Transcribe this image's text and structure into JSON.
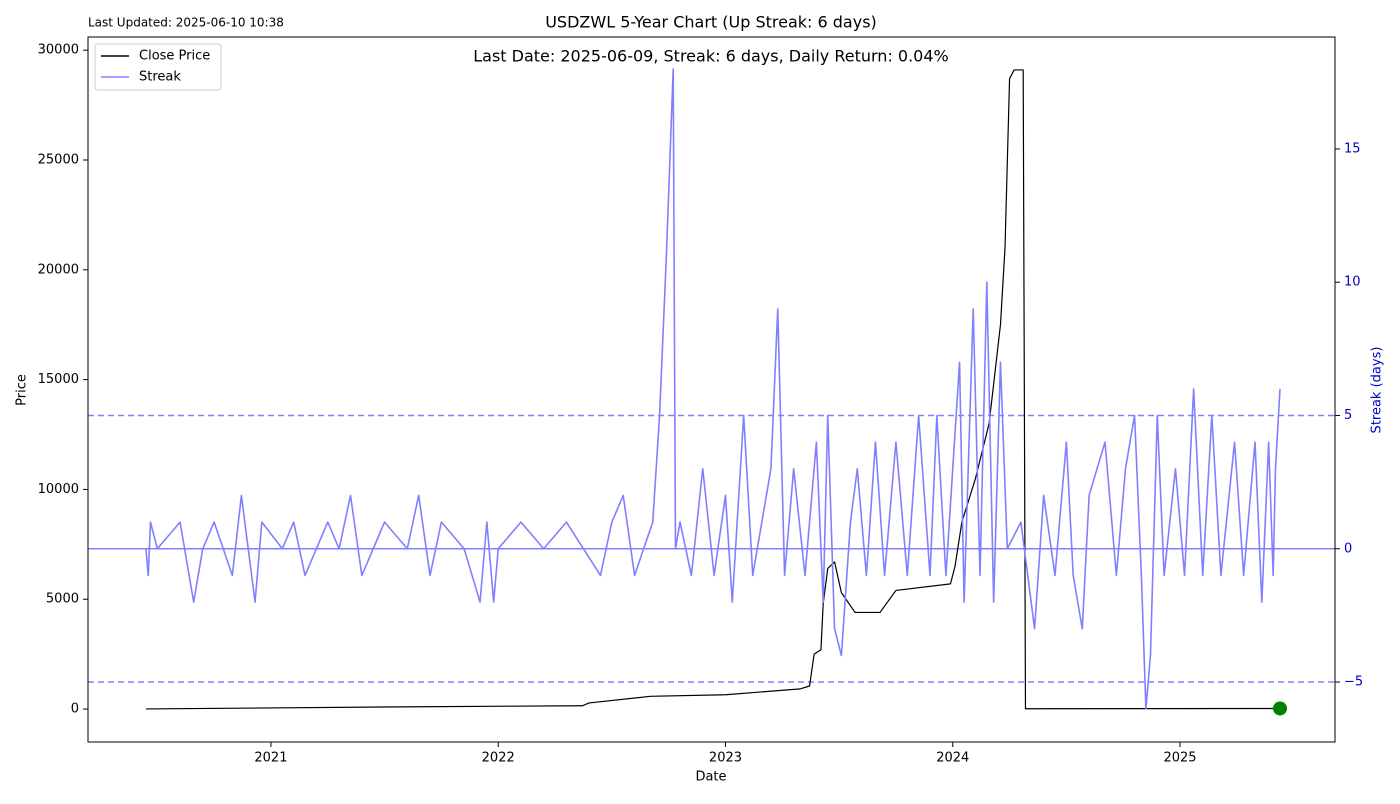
{
  "chart_data": {
    "type": "line",
    "title": "USDZWL 5-Year Chart (Up Streak: 6 days)",
    "subtitle": "Last Date: 2025-06-09, Streak: 6 days, Daily Return: 0.04%",
    "updated": "Last Updated: 2025-06-10 10:38",
    "xlabel": "Date",
    "ylabel": "Price",
    "y2label": "Streak (days)",
    "xlim": [
      2020.195,
      2025.682
    ],
    "xticks": [
      2021,
      2022,
      2023,
      2024,
      2025
    ],
    "ylim": [
      -1500,
      30600
    ],
    "yticks": [
      0,
      5000,
      10000,
      15000,
      20000,
      25000,
      30000
    ],
    "y2lim": [
      -7.25,
      19.2
    ],
    "y2ticks": [
      {
        "value": -5,
        "label": "−5"
      },
      0,
      5,
      10,
      15
    ],
    "y2_color": "#0000cc",
    "reference_lines": [
      {
        "value": 5,
        "style": "dashed"
      },
      {
        "value": -5,
        "style": "dashed"
      },
      {
        "value": 0,
        "style": "solid"
      }
    ],
    "legend": "upper left",
    "last_marker_color": "#008000",
    "series": [
      {
        "name": "Close Price",
        "color": "#000000",
        "x": [
          2020.45,
          2021.57,
          2022.37,
          2022.4,
          2022.67,
          2023.0,
          2023.33,
          2023.37,
          2023.39,
          2023.42,
          2023.43,
          2023.45,
          2023.48,
          2023.51,
          2023.57,
          2023.68,
          2023.75,
          2023.99,
          2024.01,
          2024.04,
          2024.1,
          2024.16,
          2024.21,
          2024.23,
          2024.25,
          2024.27,
          2024.31,
          2024.32,
          2025.44
        ],
        "values": [
          5,
          100,
          150,
          280,
          580,
          650,
          920,
          1050,
          2500,
          2700,
          4800,
          6400,
          6700,
          5300,
          4400,
          4400,
          5400,
          5700,
          6500,
          8500,
          10500,
          13000,
          17500,
          21000,
          28700,
          29100,
          29100,
          14,
          27
        ]
      },
      {
        "name": "Streak",
        "color": "#8080ff",
        "axis": "y2",
        "x": [
          2020.45,
          2020.46,
          2020.47,
          2020.5,
          2020.6,
          2020.66,
          2020.7,
          2020.75,
          2020.83,
          2020.87,
          2020.9,
          2020.93,
          2020.96,
          2021.05,
          2021.1,
          2021.15,
          2021.25,
          2021.3,
          2021.35,
          2021.4,
          2021.5,
          2021.6,
          2021.65,
          2021.7,
          2021.75,
          2021.85,
          2021.92,
          2021.95,
          2021.98,
          2022.0,
          2022.1,
          2022.2,
          2022.3,
          2022.45,
          2022.5,
          2022.55,
          2022.6,
          2022.68,
          2022.71,
          2022.74,
          2022.77,
          2022.78,
          2022.8,
          2022.85,
          2022.9,
          2022.95,
          2023.0,
          2023.03,
          2023.08,
          2023.12,
          2023.2,
          2023.23,
          2023.26,
          2023.3,
          2023.35,
          2023.4,
          2023.43,
          2023.45,
          2023.48,
          2023.51,
          2023.55,
          2023.58,
          2023.62,
          2023.66,
          2023.7,
          2023.75,
          2023.8,
          2023.85,
          2023.9,
          2023.93,
          2023.97,
          2024.03,
          2024.05,
          2024.09,
          2024.12,
          2024.15,
          2024.18,
          2024.21,
          2024.24,
          2024.3,
          2024.33,
          2024.36,
          2024.4,
          2024.45,
          2024.5,
          2024.53,
          2024.57,
          2024.6,
          2024.67,
          2024.72,
          2024.76,
          2024.8,
          2024.83,
          2024.85,
          2024.87,
          2024.9,
          2024.93,
          2024.98,
          2025.02,
          2025.06,
          2025.1,
          2025.14,
          2025.18,
          2025.24,
          2025.28,
          2025.33,
          2025.36,
          2025.39,
          2025.41,
          2025.42,
          2025.44
        ],
        "values": [
          0,
          -1,
          1,
          0,
          1,
          -2,
          0,
          1,
          -1,
          2,
          0,
          -2,
          1,
          0,
          1,
          -1,
          1,
          0,
          2,
          -1,
          1,
          0,
          2,
          -1,
          1,
          0,
          -2,
          1,
          -2,
          0,
          1,
          0,
          1,
          -1,
          1,
          2,
          -1,
          1,
          5,
          11,
          18,
          0,
          1,
          -1,
          3,
          -1,
          2,
          -2,
          5,
          -1,
          3,
          9,
          -1,
          3,
          -1,
          4,
          -2,
          5,
          -3,
          -4,
          1,
          3,
          -1,
          4,
          -1,
          4,
          -1,
          5,
          -1,
          5,
          -1,
          7,
          -2,
          9,
          -1,
          10,
          -2,
          7,
          0,
          1,
          -1,
          -3,
          2,
          -1,
          4,
          -1,
          -3,
          2,
          4,
          -1,
          3,
          5,
          -1,
          -6,
          -4,
          5,
          -1,
          3,
          -1,
          6,
          -1,
          5,
          -1,
          4,
          -1,
          4,
          -2,
          4,
          -1,
          3,
          6
        ]
      }
    ]
  }
}
